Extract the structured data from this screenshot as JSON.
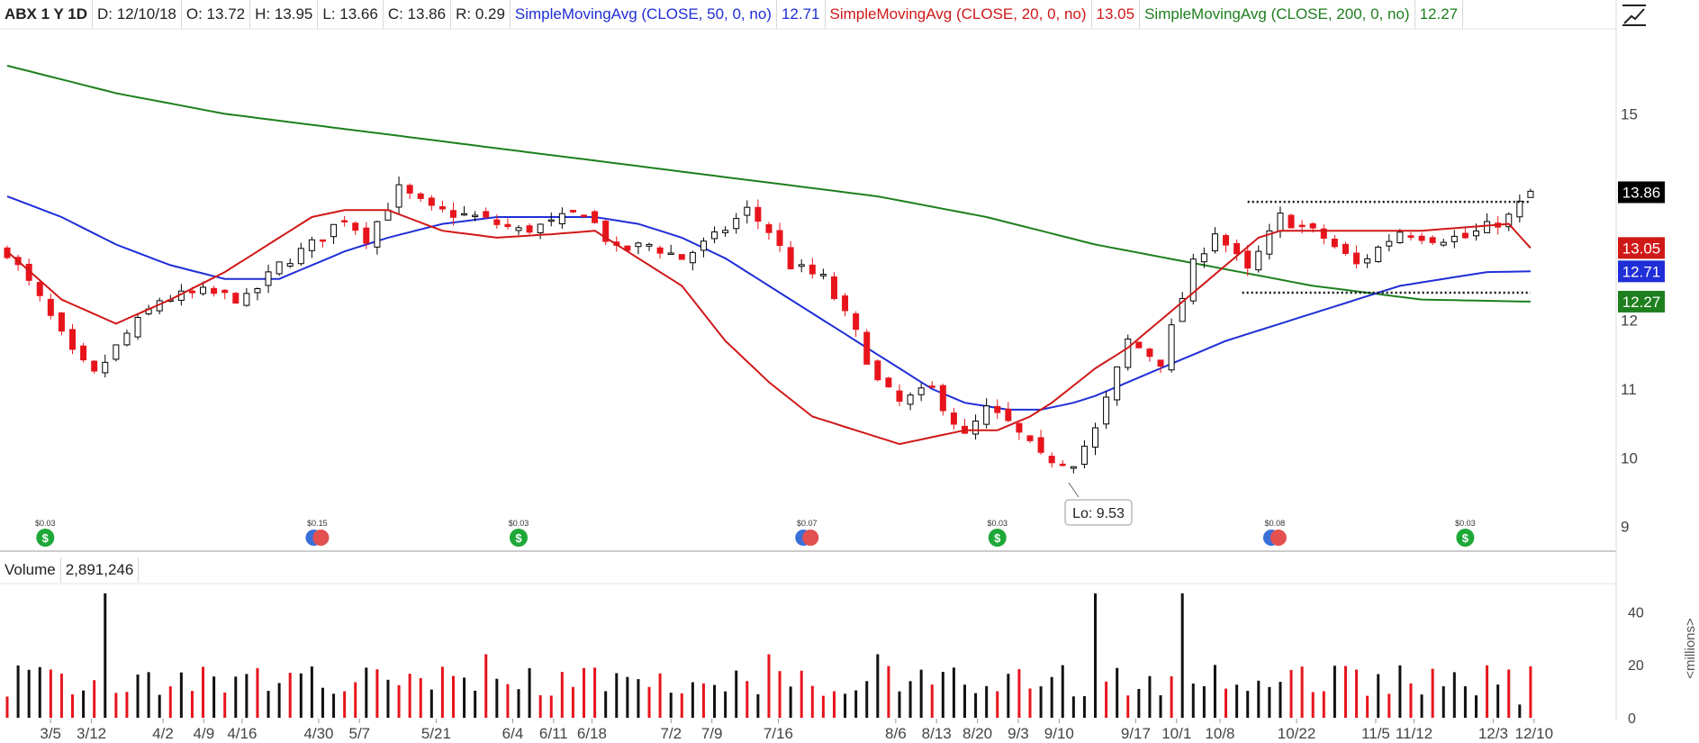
{
  "header": {
    "symbol": "ABX 1 Y 1D",
    "date": "D: 12/10/18",
    "open": "O: 13.72",
    "high": "H: 13.95",
    "low": "L: 13.66",
    "close": "C: 13.86",
    "range": "R: 0.29",
    "sma50_label": "SimpleMovingAvg (CLOSE, 50, 0, no)",
    "sma50_value": "12.71",
    "sma20_label": "SimpleMovingAvg (CLOSE, 20, 0, no)",
    "sma20_value": "13.05",
    "sma200_label": "SimpleMovingAvg (CLOSE, 200, 0, no)",
    "sma200_value": "12.27"
  },
  "volume_header": {
    "label": "Volume",
    "value": "2,891,246"
  },
  "volume_axis_unit": "<millions>",
  "low_callout": "Lo: 9.53",
  "colors": {
    "up": "#000000",
    "down": "#e8141c",
    "sma50": "#1f2ed6",
    "sma20": "#d01818",
    "sma200": "#1e7f1e",
    "volume_up": "#111111",
    "volume_down": "#e8141c",
    "dividend": "#1ea838",
    "earnings": "#3a6fd8"
  },
  "icons": {
    "dividend": "dollar-icon",
    "earnings": "earnings-icon",
    "drawing_tool": "drawing-tool-icon"
  },
  "chart_data": {
    "type": "candlestick",
    "ylim": [
      8.8,
      16.0
    ],
    "price_ticks": [
      "9",
      "10",
      "11",
      "12",
      "15"
    ],
    "volume_ylim": [
      0,
      50
    ],
    "volume_ticks": [
      "0",
      "20",
      "40"
    ],
    "x_tick_labels": [
      "3/5",
      "3/12",
      "4/2",
      "4/9",
      "4/16",
      "4/30",
      "5/7",
      "5/21",
      "6/4",
      "6/11",
      "6/18",
      "7/2",
      "7/9",
      "7/16",
      "8/6",
      "8/13",
      "8/20",
      "9/3",
      "9/10",
      "9/17",
      "10/1",
      "10/8",
      "10/22",
      "11/5",
      "11/12",
      "12/3",
      "12/10"
    ],
    "price_badges": [
      {
        "name": "close",
        "value": "13.86",
        "color": "#000000"
      },
      {
        "name": "sma20",
        "value": "13.05",
        "color": "#d01818"
      },
      {
        "name": "sma50",
        "value": "12.71",
        "color": "#1f2ed6"
      },
      {
        "name": "sma200",
        "value": "12.27",
        "color": "#1e7f1e"
      }
    ],
    "close_path": [
      [
        0,
        13.0
      ],
      [
        6,
        12.3
      ],
      [
        12,
        11.5
      ],
      [
        16,
        11.2
      ],
      [
        22,
        11.8
      ],
      [
        28,
        12.3
      ],
      [
        36,
        12.4
      ],
      [
        44,
        12.3
      ],
      [
        50,
        12.8
      ],
      [
        56,
        13.1
      ],
      [
        62,
        13.5
      ],
      [
        66,
        13.2
      ],
      [
        72,
        13.9
      ],
      [
        78,
        13.6
      ],
      [
        86,
        13.5
      ],
      [
        94,
        13.3
      ],
      [
        100,
        13.4
      ],
      [
        106,
        13.6
      ],
      [
        112,
        13.0
      ],
      [
        118,
        13.1
      ],
      [
        124,
        12.9
      ],
      [
        130,
        13.2
      ],
      [
        136,
        13.6
      ],
      [
        140,
        13.3
      ],
      [
        144,
        12.8
      ],
      [
        150,
        12.6
      ],
      [
        156,
        11.8
      ],
      [
        160,
        11.1
      ],
      [
        164,
        10.8
      ],
      [
        170,
        11.0
      ],
      [
        176,
        10.3
      ],
      [
        180,
        10.7
      ],
      [
        184,
        10.5
      ],
      [
        190,
        10.0
      ],
      [
        196,
        9.95
      ],
      [
        200,
        10.4
      ],
      [
        206,
        11.7
      ],
      [
        212,
        11.4
      ],
      [
        218,
        12.8
      ],
      [
        222,
        13.3
      ],
      [
        228,
        12.7
      ],
      [
        234,
        13.5
      ],
      [
        242,
        13.2
      ],
      [
        248,
        12.8
      ],
      [
        256,
        13.3
      ],
      [
        262,
        13.2
      ],
      [
        268,
        13.2
      ],
      [
        276,
        13.5
      ],
      [
        280,
        13.86
      ]
    ],
    "sma20": [
      [
        0,
        13.0
      ],
      [
        10,
        12.3
      ],
      [
        20,
        11.95
      ],
      [
        30,
        12.3
      ],
      [
        40,
        12.7
      ],
      [
        50,
        13.2
      ],
      [
        56,
        13.5
      ],
      [
        62,
        13.6
      ],
      [
        70,
        13.6
      ],
      [
        80,
        13.3
      ],
      [
        90,
        13.2
      ],
      [
        100,
        13.25
      ],
      [
        108,
        13.3
      ],
      [
        116,
        12.9
      ],
      [
        124,
        12.5
      ],
      [
        132,
        11.7
      ],
      [
        140,
        11.1
      ],
      [
        148,
        10.6
      ],
      [
        156,
        10.4
      ],
      [
        164,
        10.2
      ],
      [
        170,
        10.3
      ],
      [
        176,
        10.4
      ],
      [
        182,
        10.4
      ],
      [
        188,
        10.6
      ],
      [
        192,
        10.8
      ],
      [
        200,
        11.3
      ],
      [
        206,
        11.6
      ],
      [
        212,
        12.0
      ],
      [
        218,
        12.4
      ],
      [
        224,
        12.8
      ],
      [
        230,
        13.2
      ],
      [
        234,
        13.3
      ],
      [
        240,
        13.3
      ],
      [
        246,
        13.3
      ],
      [
        252,
        13.3
      ],
      [
        260,
        13.3
      ],
      [
        268,
        13.35
      ],
      [
        276,
        13.4
      ],
      [
        280,
        13.05
      ]
    ],
    "sma50": [
      [
        0,
        13.8
      ],
      [
        10,
        13.5
      ],
      [
        20,
        13.1
      ],
      [
        30,
        12.8
      ],
      [
        40,
        12.6
      ],
      [
        50,
        12.6
      ],
      [
        56,
        12.8
      ],
      [
        62,
        13.0
      ],
      [
        70,
        13.2
      ],
      [
        80,
        13.4
      ],
      [
        90,
        13.5
      ],
      [
        100,
        13.5
      ],
      [
        108,
        13.5
      ],
      [
        116,
        13.4
      ],
      [
        124,
        13.2
      ],
      [
        132,
        12.9
      ],
      [
        140,
        12.5
      ],
      [
        148,
        12.1
      ],
      [
        156,
        11.7
      ],
      [
        164,
        11.3
      ],
      [
        170,
        11.0
      ],
      [
        176,
        10.8
      ],
      [
        184,
        10.7
      ],
      [
        190,
        10.7
      ],
      [
        196,
        10.8
      ],
      [
        200,
        10.9
      ],
      [
        206,
        11.1
      ],
      [
        212,
        11.3
      ],
      [
        218,
        11.5
      ],
      [
        224,
        11.7
      ],
      [
        232,
        11.9
      ],
      [
        240,
        12.1
      ],
      [
        248,
        12.3
      ],
      [
        256,
        12.5
      ],
      [
        264,
        12.6
      ],
      [
        272,
        12.7
      ],
      [
        280,
        12.71
      ]
    ],
    "sma200": [
      [
        0,
        15.7
      ],
      [
        20,
        15.3
      ],
      [
        40,
        15.0
      ],
      [
        60,
        14.8
      ],
      [
        80,
        14.6
      ],
      [
        100,
        14.4
      ],
      [
        120,
        14.2
      ],
      [
        140,
        14.0
      ],
      [
        160,
        13.8
      ],
      [
        180,
        13.5
      ],
      [
        200,
        13.1
      ],
      [
        220,
        12.8
      ],
      [
        240,
        12.5
      ],
      [
        260,
        12.3
      ],
      [
        280,
        12.27
      ]
    ],
    "lines": [
      {
        "name": "resistance",
        "style": "dotted",
        "value": 13.72
      },
      {
        "name": "support",
        "style": "dotted",
        "value": 12.4
      }
    ],
    "dividends": [
      {
        "label": "$0.03"
      },
      {
        "label": "$0.15"
      },
      {
        "label": "$0.03"
      },
      {
        "label": "$0.07"
      },
      {
        "label": "$0.03"
      },
      {
        "label": "$0.08"
      },
      {
        "label": "$0.03"
      }
    ]
  }
}
